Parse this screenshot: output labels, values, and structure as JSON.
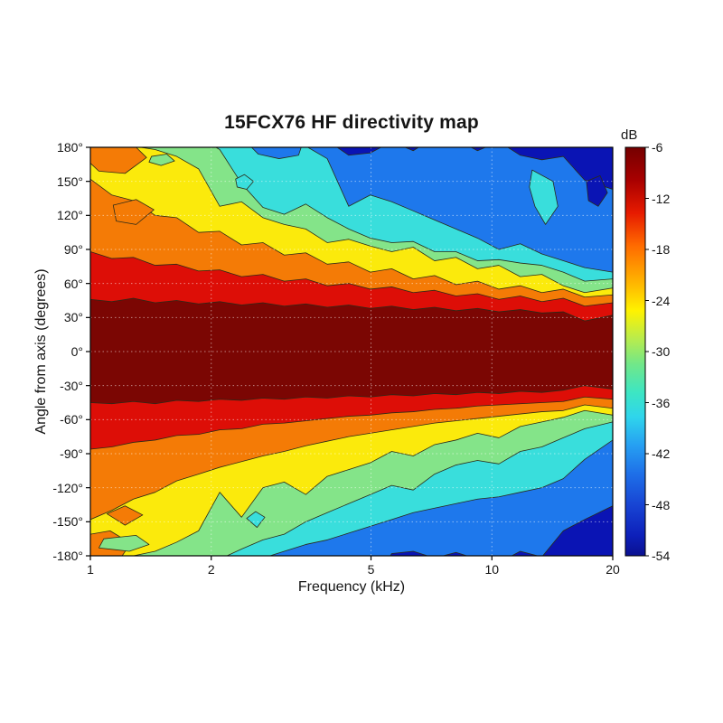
{
  "title": "15FCX76 HF directivity map",
  "chart_data": {
    "type": "heatmap",
    "subtype": "filled-contour-directivity-map",
    "title": "15FCX76 HF directivity map",
    "xlabel": "Frequency (kHz)",
    "ylabel": "Angle from axis (degrees)",
    "colorbar_label": "dB",
    "x_scale": "log",
    "xlim": [
      1,
      20
    ],
    "ylim": [
      -180,
      180
    ],
    "grid": true,
    "x_ticks": [
      1,
      2,
      5,
      10,
      20
    ],
    "x_tick_labels": [
      "1",
      "2",
      "5",
      "10",
      "20"
    ],
    "y_ticks": [
      180,
      150,
      120,
      90,
      60,
      30,
      0,
      -30,
      -60,
      -90,
      -120,
      -150,
      -180
    ],
    "y_tick_labels": [
      "180°",
      "150°",
      "120°",
      "90°",
      "60°",
      "30°",
      "0°",
      "-30°",
      "-60°",
      "-90°",
      "-120°",
      "-150°",
      "-180°"
    ],
    "colorbar_range": [
      -6,
      -54
    ],
    "colorbar_ticks": [
      -6,
      -12,
      -18,
      -24,
      -30,
      -36,
      -42,
      -48,
      -54
    ],
    "colorbar_tick_labels": [
      "-6",
      "-12",
      "-18",
      "-24",
      "-30",
      "-36",
      "-42",
      "-48",
      "-54"
    ],
    "band_ranges_db": [
      "-6 to -12",
      "-12 to -18",
      "-18 to -24",
      "-24 to -30",
      "-30 to -36",
      "-36 to -42",
      "-42 to -48",
      "-48 to -54"
    ],
    "band_colors": [
      "#7B0603",
      "#DD0E07",
      "#F47B06",
      "#FBEA0C",
      "#84E489",
      "#39DEDC",
      "#1E78EC",
      "#0A14B4"
    ],
    "contour_line_color": "#2A2A18",
    "grid_line_color": "rgba(255,255,255,0.5)",
    "frame_color": "#000000",
    "colorbar_gradient": [
      [
        0,
        "#750000"
      ],
      [
        8,
        "#A80000"
      ],
      [
        16,
        "#E61A00"
      ],
      [
        24,
        "#FF6A00"
      ],
      [
        33,
        "#FFB400"
      ],
      [
        40,
        "#FFF200"
      ],
      [
        47,
        "#B7EC4E"
      ],
      [
        53,
        "#72E788"
      ],
      [
        60,
        "#3DE6C3"
      ],
      [
        66,
        "#2FD5EC"
      ],
      [
        73,
        "#269FF2"
      ],
      [
        80,
        "#1E6FE8"
      ],
      [
        88,
        "#1742D2"
      ],
      [
        95,
        "#0D20BA"
      ],
      [
        100,
        "#0A1090"
      ]
    ],
    "contour_levels_db": [
      -12,
      -18,
      -24,
      -30,
      -36,
      -42,
      -48
    ],
    "frequencies_khz": [
      1.0,
      1.13,
      1.28,
      1.45,
      1.64,
      1.86,
      2.1,
      2.38,
      2.69,
      3.04,
      3.44,
      3.89,
      4.4,
      4.98,
      5.63,
      6.37,
      7.2,
      8.14,
      9.21,
      10.41,
      11.77,
      13.32,
      15.06,
      17.03,
      20.0
    ],
    "contours_upper_deg": [
      [
        46,
        44,
        47,
        43,
        45,
        42,
        44,
        41,
        43,
        40,
        42,
        39,
        41,
        38,
        40,
        37,
        39,
        36,
        38,
        35,
        37,
        34,
        35,
        27,
        32
      ],
      [
        88,
        82,
        83,
        76,
        77,
        71,
        72,
        66,
        68,
        62,
        64,
        58,
        60,
        55,
        57,
        52,
        54,
        49,
        51,
        46,
        49,
        44,
        47,
        40,
        43
      ],
      [
        152,
        138,
        133,
        120,
        118,
        105,
        106,
        94,
        96,
        85,
        87,
        77,
        79,
        70,
        73,
        64,
        67,
        59,
        62,
        55,
        58,
        52,
        55,
        48,
        50
      ],
      [
        184,
        186,
        181,
        178,
        172,
        161,
        128,
        132,
        118,
        112,
        108,
        96,
        99,
        93,
        88,
        92,
        80,
        83,
        73,
        76,
        66,
        68,
        58,
        52,
        56
      ],
      [
        192,
        192,
        192,
        192,
        192,
        189,
        178,
        148,
        127,
        121,
        130,
        118,
        108,
        100,
        96,
        97,
        88,
        88,
        80,
        81,
        78,
        76,
        70,
        62,
        64
      ],
      [
        200,
        200,
        200,
        200,
        200,
        200,
        200,
        200,
        200,
        200,
        181,
        170,
        128,
        138,
        132,
        124,
        116,
        108,
        100,
        90,
        95,
        86,
        80,
        74,
        70
      ],
      [
        210,
        210,
        210,
        210,
        210,
        210,
        210,
        210,
        210,
        210,
        210,
        186,
        173,
        175,
        185,
        177,
        189,
        187,
        177,
        185,
        173,
        169,
        172,
        151,
        143
      ]
    ],
    "contours_lower_deg": [
      [
        -45,
        -46,
        -44,
        -46,
        -43,
        -44,
        -42,
        -43,
        -41,
        -42,
        -40,
        -41,
        -39,
        -40,
        -38,
        -39,
        -37,
        -38,
        -36,
        -37,
        -35,
        -36,
        -34,
        -30,
        -33
      ],
      [
        -86,
        -84,
        -80,
        -78,
        -74,
        -73,
        -69,
        -68,
        -64,
        -63,
        -61,
        -59,
        -57,
        -56,
        -54,
        -53,
        -51,
        -50,
        -48,
        -47,
        -46,
        -45,
        -44,
        -40,
        -42
      ],
      [
        -148,
        -140,
        -130,
        -124,
        -114,
        -108,
        -102,
        -97,
        -92,
        -88,
        -83,
        -79,
        -75,
        -72,
        -69,
        -66,
        -63,
        -61,
        -59,
        -57,
        -55,
        -53,
        -52,
        -47,
        -50
      ],
      [
        -184,
        -186,
        -180,
        -176,
        -168,
        -158,
        -124,
        -146,
        -120,
        -115,
        -126,
        -110,
        -104,
        -98,
        -88,
        -92,
        -82,
        -78,
        -72,
        -76,
        -66,
        -62,
        -58,
        -52,
        -56
      ],
      [
        -192,
        -192,
        -192,
        -192,
        -192,
        -192,
        -183,
        -174,
        -166,
        -161,
        -150,
        -142,
        -134,
        -126,
        -118,
        -122,
        -108,
        -100,
        -96,
        -99,
        -88,
        -84,
        -76,
        -68,
        -62
      ],
      [
        -200,
        -200,
        -200,
        -200,
        -200,
        -200,
        -200,
        -200,
        -182,
        -176,
        -170,
        -166,
        -160,
        -154,
        -148,
        -142,
        -138,
        -134,
        -130,
        -128,
        -124,
        -120,
        -112,
        -95,
        -78
      ],
      [
        -210,
        -210,
        -210,
        -210,
        -210,
        -210,
        -210,
        -210,
        -210,
        -210,
        -210,
        -210,
        -210,
        -210,
        -178,
        -176,
        -182,
        -177,
        -183,
        -186,
        -176,
        -181,
        -158,
        -148,
        -136
      ]
    ],
    "islands": [
      {
        "band_index": 4,
        "points": [
          [
            1.0,
            176
          ],
          [
            1.18,
            178
          ],
          [
            1.32,
            173
          ],
          [
            1.28,
            166
          ],
          [
            1.1,
            164
          ],
          [
            1.0,
            169
          ]
        ]
      },
      {
        "band_index": 4,
        "points": [
          [
            1.42,
            172
          ],
          [
            1.55,
            174
          ],
          [
            1.62,
            168
          ],
          [
            1.5,
            164
          ],
          [
            1.4,
            167
          ]
        ]
      },
      {
        "band_index": 2,
        "points": [
          [
            1.0,
            180
          ],
          [
            1.3,
            180
          ],
          [
            1.38,
            171
          ],
          [
            1.22,
            157
          ],
          [
            1.05,
            159
          ],
          [
            1.0,
            166
          ]
        ]
      },
      {
        "band_index": 2,
        "points": [
          [
            1.14,
            129
          ],
          [
            1.3,
            134
          ],
          [
            1.44,
            125
          ],
          [
            1.3,
            112
          ],
          [
            1.16,
            115
          ]
        ]
      },
      {
        "band_index": 5,
        "points": [
          [
            2.3,
            152
          ],
          [
            2.42,
            156
          ],
          [
            2.55,
            150
          ],
          [
            2.45,
            143
          ],
          [
            2.32,
            145
          ]
        ]
      },
      {
        "band_index": 6,
        "points": [
          [
            2.52,
            180
          ],
          [
            3.35,
            180
          ],
          [
            3.3,
            173
          ],
          [
            2.95,
            170
          ],
          [
            2.62,
            174
          ]
        ]
      },
      {
        "band_index": 2,
        "points": [
          [
            1.0,
            -180
          ],
          [
            1.2,
            -180
          ],
          [
            1.26,
            -169
          ],
          [
            1.12,
            -158
          ],
          [
            1.0,
            -161
          ]
        ]
      },
      {
        "band_index": 2,
        "points": [
          [
            1.1,
            -143
          ],
          [
            1.22,
            -136
          ],
          [
            1.35,
            -144
          ],
          [
            1.22,
            -153
          ]
        ]
      },
      {
        "band_index": 4,
        "points": [
          [
            1.05,
            -173
          ],
          [
            1.25,
            -176
          ],
          [
            1.4,
            -170
          ],
          [
            1.3,
            -162
          ],
          [
            1.08,
            -165
          ]
        ]
      },
      {
        "band_index": 5,
        "points": [
          [
            2.45,
            -147
          ],
          [
            2.58,
            -141
          ],
          [
            2.72,
            -146
          ],
          [
            2.6,
            -155
          ]
        ]
      },
      {
        "band_index": 5,
        "points": [
          [
            12.6,
            160
          ],
          [
            14.2,
            150
          ],
          [
            14.6,
            128
          ],
          [
            13.6,
            112
          ],
          [
            12.8,
            128
          ],
          [
            12.4,
            145
          ]
        ]
      },
      {
        "band_index": 7,
        "points": [
          [
            17.2,
            150
          ],
          [
            18.6,
            155
          ],
          [
            19.4,
            140
          ],
          [
            18.4,
            128
          ],
          [
            17.4,
            133
          ]
        ]
      }
    ]
  }
}
